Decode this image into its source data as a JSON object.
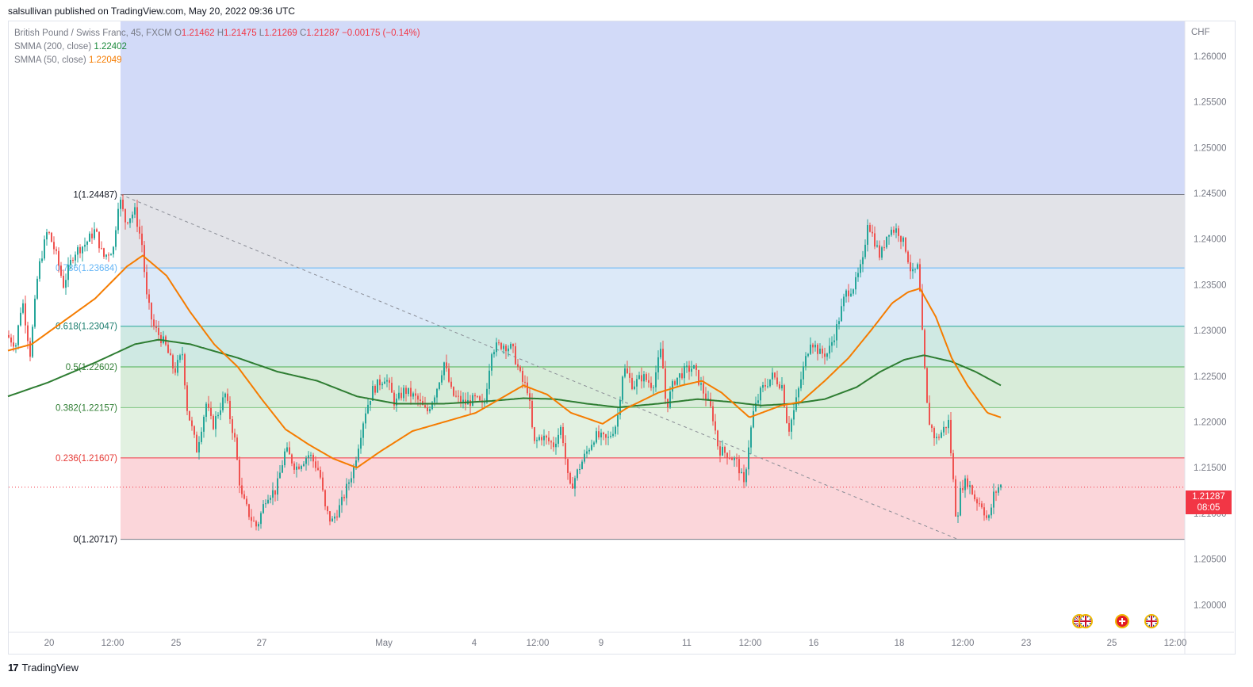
{
  "header": {
    "published_line": "salsullivan published on TradingView.com, May 20, 2022 09:36 UTC"
  },
  "legend": {
    "symbol": "British Pound / Swiss Franc, 45, FXCM",
    "o_label": "O",
    "o_value": "1.21462",
    "h_label": "H",
    "h_value": "1.21475",
    "l_label": "L",
    "l_value": "1.21269",
    "c_label": "C",
    "c_value": "1.21287",
    "change": "−0.00175 (−0.14%)",
    "smma200_label": "SMMA (200, close)",
    "smma200_value": "1.22402",
    "smma50_label": "SMMA (50, close)",
    "smma50_value": "1.22049"
  },
  "price_tag": {
    "price": "1.21287",
    "countdown": "08:05"
  },
  "footer": {
    "brand": "TradingView",
    "logo_glyph": "17"
  },
  "colors": {
    "up": "#26a69a",
    "down": "#ef5350",
    "smma200": "#2e7d32",
    "smma50": "#f57c00",
    "fib_zone_top": "#d2daf8",
    "fib_zone_1": "#e2e3e8",
    "fib_zone_0786": "#dce9f8",
    "fib_zone_0618": "#cfe9e3",
    "fib_zone_05": "#d8ecd9",
    "fib_zone_0382": "#e2f1e1",
    "fib_zone_0236": "#fbd6da"
  },
  "event_icons": [
    "uk-flag-icon",
    "swiss-flag-icon",
    "uk-flag-icon"
  ],
  "chart_data": {
    "type": "candlestick",
    "axis_unit": "CHF",
    "ylim": [
      1.197,
      1.2638
    ],
    "y_ticks": [
      "1.26000",
      "1.25500",
      "1.25000",
      "1.24500",
      "1.24000",
      "1.23500",
      "1.23000",
      "1.22500",
      "1.22000",
      "1.21500",
      "1.21000",
      "1.20500",
      "1.20000"
    ],
    "x_ticks": [
      "20",
      "12:00",
      "25",
      "27",
      "May",
      "4",
      "12:00",
      "9",
      "11",
      "12:00",
      "16",
      "18",
      "12:00",
      "23",
      "25",
      "12:00"
    ],
    "fib_levels": [
      {
        "ratio": "1",
        "price": 1.24487,
        "label": "1(1.24487)"
      },
      {
        "ratio": "0.786",
        "price": 1.23684,
        "label": "0.786(1.23684)"
      },
      {
        "ratio": "0.618",
        "price": 1.23047,
        "label": "0.618(1.23047)"
      },
      {
        "ratio": "0.5",
        "price": 1.22602,
        "label": "0.5(1.22602)"
      },
      {
        "ratio": "0.382",
        "price": 1.22157,
        "label": "0.382(1.22157)"
      },
      {
        "ratio": "0.236",
        "price": 1.21607,
        "label": "0.236(1.21607)"
      },
      {
        "ratio": "0",
        "price": 1.20717,
        "label": "0(1.20717)"
      }
    ],
    "trend_line": {
      "start": [
        152,
        1.24487
      ],
      "end": [
        1208,
        1.20717
      ]
    },
    "price_anchors": [
      [
        10,
        1.2295
      ],
      [
        22,
        1.2285
      ],
      [
        30,
        1.2335
      ],
      [
        40,
        1.2275
      ],
      [
        50,
        1.2365
      ],
      [
        62,
        1.241
      ],
      [
        72,
        1.2385
      ],
      [
        82,
        1.235
      ],
      [
        95,
        1.2385
      ],
      [
        110,
        1.2395
      ],
      [
        122,
        1.241
      ],
      [
        132,
        1.238
      ],
      [
        145,
        1.239
      ],
      [
        152,
        1.2447
      ],
      [
        160,
        1.242
      ],
      [
        172,
        1.243
      ],
      [
        182,
        1.239
      ],
      [
        186,
        1.234
      ],
      [
        195,
        1.2305
      ],
      [
        210,
        1.2285
      ],
      [
        222,
        1.2255
      ],
      [
        232,
        1.2275
      ],
      [
        238,
        1.2215
      ],
      [
        250,
        1.217
      ],
      [
        262,
        1.222
      ],
      [
        270,
        1.2195
      ],
      [
        286,
        1.223
      ],
      [
        298,
        1.218
      ],
      [
        306,
        1.212
      ],
      [
        318,
        1.2095
      ],
      [
        326,
        1.2085
      ],
      [
        338,
        1.212
      ],
      [
        350,
        1.2125
      ],
      [
        362,
        1.217
      ],
      [
        375,
        1.215
      ],
      [
        392,
        1.2165
      ],
      [
        405,
        1.2145
      ],
      [
        412,
        1.2105
      ],
      [
        420,
        1.209
      ],
      [
        432,
        1.211
      ],
      [
        448,
        1.215
      ],
      [
        462,
        1.221
      ],
      [
        472,
        1.2235
      ],
      [
        488,
        1.225
      ],
      [
        500,
        1.222
      ],
      [
        512,
        1.2235
      ],
      [
        528,
        1.2225
      ],
      [
        540,
        1.221
      ],
      [
        552,
        1.2235
      ],
      [
        562,
        1.2265
      ],
      [
        572,
        1.223
      ],
      [
        588,
        1.222
      ],
      [
        602,
        1.2225
      ],
      [
        612,
        1.2215
      ],
      [
        622,
        1.228
      ],
      [
        636,
        1.2285
      ],
      [
        648,
        1.228
      ],
      [
        660,
        1.2245
      ],
      [
        668,
        1.2235
      ],
      [
        675,
        1.2175
      ],
      [
        684,
        1.2185
      ],
      [
        700,
        1.2175
      ],
      [
        710,
        1.2195
      ],
      [
        720,
        1.2125
      ],
      [
        735,
        1.2155
      ],
      [
        752,
        1.2185
      ],
      [
        768,
        1.218
      ],
      [
        780,
        1.22
      ],
      [
        788,
        1.226
      ],
      [
        800,
        1.224
      ],
      [
        812,
        1.225
      ],
      [
        825,
        1.224
      ],
      [
        836,
        1.228
      ],
      [
        842,
        1.2215
      ],
      [
        852,
        1.2245
      ],
      [
        864,
        1.2255
      ],
      [
        876,
        1.226
      ],
      [
        888,
        1.2235
      ],
      [
        900,
        1.221
      ],
      [
        908,
        1.217
      ],
      [
        920,
        1.2165
      ],
      [
        932,
        1.2155
      ],
      [
        940,
        1.213
      ],
      [
        946,
        1.2175
      ],
      [
        952,
        1.221
      ],
      [
        962,
        1.2235
      ],
      [
        976,
        1.225
      ],
      [
        988,
        1.224
      ],
      [
        996,
        1.219
      ],
      [
        1004,
        1.2215
      ],
      [
        1014,
        1.2255
      ],
      [
        1024,
        1.229
      ],
      [
        1036,
        1.2275
      ],
      [
        1046,
        1.2275
      ],
      [
        1056,
        1.23
      ],
      [
        1068,
        1.234
      ],
      [
        1080,
        1.235
      ],
      [
        1090,
        1.2375
      ],
      [
        1096,
        1.242
      ],
      [
        1104,
        1.24
      ],
      [
        1112,
        1.238
      ],
      [
        1122,
        1.241
      ],
      [
        1134,
        1.241
      ],
      [
        1144,
        1.239
      ],
      [
        1152,
        1.236
      ],
      [
        1160,
        1.237
      ],
      [
        1166,
        1.228
      ],
      [
        1172,
        1.2205
      ],
      [
        1182,
        1.218
      ],
      [
        1190,
        1.219
      ],
      [
        1198,
        1.22
      ],
      [
        1204,
        1.2135
      ],
      [
        1208,
        1.209
      ],
      [
        1214,
        1.213
      ],
      [
        1222,
        1.2135
      ],
      [
        1232,
        1.2115
      ],
      [
        1240,
        1.211
      ],
      [
        1248,
        1.209
      ],
      [
        1255,
        1.212
      ],
      [
        1262,
        1.213
      ]
    ],
    "smma200_anchors": [
      [
        10,
        1.2228
      ],
      [
        60,
        1.2243
      ],
      [
        120,
        1.2265
      ],
      [
        170,
        1.2285
      ],
      [
        200,
        1.229
      ],
      [
        240,
        1.2285
      ],
      [
        300,
        1.227
      ],
      [
        350,
        1.2255
      ],
      [
        400,
        1.2245
      ],
      [
        450,
        1.2228
      ],
      [
        500,
        1.222
      ],
      [
        560,
        1.222
      ],
      [
        620,
        1.2223
      ],
      [
        660,
        1.2226
      ],
      [
        700,
        1.2225
      ],
      [
        740,
        1.222
      ],
      [
        780,
        1.2216
      ],
      [
        830,
        1.222
      ],
      [
        880,
        1.2225
      ],
      [
        920,
        1.2222
      ],
      [
        960,
        1.2218
      ],
      [
        1000,
        1.222
      ],
      [
        1040,
        1.2225
      ],
      [
        1080,
        1.2238
      ],
      [
        1110,
        1.2255
      ],
      [
        1140,
        1.2268
      ],
      [
        1165,
        1.2273
      ],
      [
        1200,
        1.2266
      ],
      [
        1230,
        1.2255
      ],
      [
        1262,
        1.224
      ]
    ],
    "smma50_anchors": [
      [
        10,
        1.2278
      ],
      [
        40,
        1.2285
      ],
      [
        80,
        1.231
      ],
      [
        120,
        1.2335
      ],
      [
        160,
        1.237
      ],
      [
        180,
        1.2382
      ],
      [
        210,
        1.236
      ],
      [
        240,
        1.232
      ],
      [
        270,
        1.2285
      ],
      [
        300,
        1.226
      ],
      [
        330,
        1.2225
      ],
      [
        360,
        1.2192
      ],
      [
        390,
        1.2175
      ],
      [
        420,
        1.216
      ],
      [
        450,
        1.215
      ],
      [
        480,
        1.2168
      ],
      [
        520,
        1.219
      ],
      [
        560,
        1.22
      ],
      [
        600,
        1.221
      ],
      [
        630,
        1.2225
      ],
      [
        660,
        1.224
      ],
      [
        690,
        1.223
      ],
      [
        720,
        1.221
      ],
      [
        760,
        1.2198
      ],
      [
        790,
        1.2215
      ],
      [
        830,
        1.2232
      ],
      [
        860,
        1.224
      ],
      [
        885,
        1.2245
      ],
      [
        910,
        1.2232
      ],
      [
        945,
        1.2205
      ],
      [
        985,
        1.2218
      ],
      [
        1010,
        1.2222
      ],
      [
        1040,
        1.2245
      ],
      [
        1070,
        1.227
      ],
      [
        1100,
        1.2302
      ],
      [
        1125,
        1.233
      ],
      [
        1145,
        1.2342
      ],
      [
        1160,
        1.2346
      ],
      [
        1180,
        1.2315
      ],
      [
        1200,
        1.227
      ],
      [
        1220,
        1.224
      ],
      [
        1245,
        1.221
      ],
      [
        1262,
        1.2205
      ]
    ]
  }
}
